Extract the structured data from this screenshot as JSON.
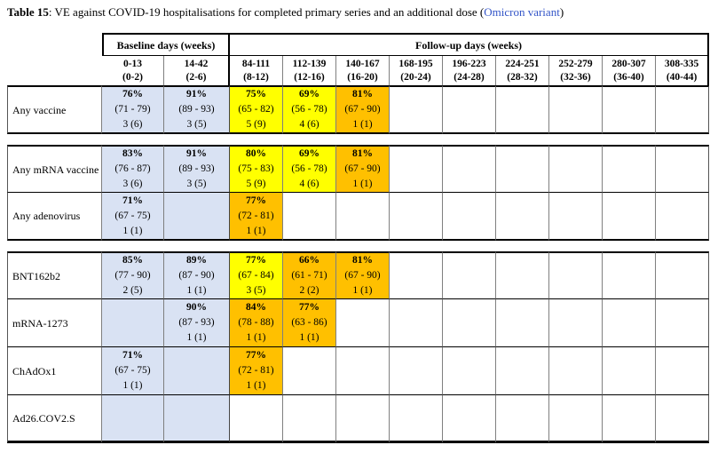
{
  "title": {
    "label": "Table 15",
    "rest": ": VE against COVID-19 hospitalisations for completed primary series and an additional dose (",
    "variant": "Omicron variant",
    "close": ")"
  },
  "colors": {
    "baseline_bg": "#D9E2F3",
    "high_ve_bg": "#FFFF00",
    "mid_ve_bg": "#FFC000",
    "variant_text": "#3355C8"
  },
  "header": {
    "baseline": "Baseline days (weeks)",
    "followup": "Follow-up days (weeks)",
    "columns": [
      {
        "days": "0-13",
        "weeks": "(0-2)"
      },
      {
        "days": "14-42",
        "weeks": "(2-6)"
      },
      {
        "days": "84-111",
        "weeks": "(8-12)"
      },
      {
        "days": "112-139",
        "weeks": "(12-16)"
      },
      {
        "days": "140-167",
        "weeks": "(16-20)"
      },
      {
        "days": "168-195",
        "weeks": "(20-24)"
      },
      {
        "days": "196-223",
        "weeks": "(24-28)"
      },
      {
        "days": "224-251",
        "weeks": "(28-32)"
      },
      {
        "days": "252-279",
        "weeks": "(32-36)"
      },
      {
        "days": "280-307",
        "weeks": "(36-40)"
      },
      {
        "days": "308-335",
        "weeks": "(40-44)"
      }
    ]
  },
  "groups": [
    {
      "rows": [
        {
          "label": "Any vaccine",
          "cells": [
            {
              "bg": "blue",
              "ve": "76%",
              "ci": "(71 - 79)",
              "n": "3 (6)"
            },
            {
              "bg": "blue",
              "ve": "91%",
              "ci": "(89 - 93)",
              "n": "3 (5)"
            },
            {
              "bg": "yellow",
              "ve": "75%",
              "ci": "(65 - 82)",
              "n": "5 (9)"
            },
            {
              "bg": "yellow",
              "ve": "69%",
              "ci": "(56 - 78)",
              "n": "4 (6)"
            },
            {
              "bg": "orange",
              "ve": "81%",
              "ci": "(67 - 90)",
              "n": "1 (1)"
            },
            {
              "bg": "white"
            },
            {
              "bg": "white"
            },
            {
              "bg": "white"
            },
            {
              "bg": "white"
            },
            {
              "bg": "white"
            },
            {
              "bg": "white"
            }
          ]
        }
      ]
    },
    {
      "rows": [
        {
          "label": "Any mRNA vaccine",
          "cells": [
            {
              "bg": "blue",
              "ve": "83%",
              "ci": "(76 - 87)",
              "n": "3 (6)"
            },
            {
              "bg": "blue",
              "ve": "91%",
              "ci": "(89 - 93)",
              "n": "3 (5)"
            },
            {
              "bg": "yellow",
              "ve": "80%",
              "ci": "(75 - 83)",
              "n": "5 (9)"
            },
            {
              "bg": "yellow",
              "ve": "69%",
              "ci": "(56 - 78)",
              "n": "4 (6)"
            },
            {
              "bg": "orange",
              "ve": "81%",
              "ci": "(67 - 90)",
              "n": "1 (1)"
            },
            {
              "bg": "white"
            },
            {
              "bg": "white"
            },
            {
              "bg": "white"
            },
            {
              "bg": "white"
            },
            {
              "bg": "white"
            },
            {
              "bg": "white"
            }
          ]
        },
        {
          "label": "Any adenovirus",
          "cells": [
            {
              "bg": "blue",
              "ve": "71%",
              "ci": "(67 - 75)",
              "n": "1 (1)"
            },
            {
              "bg": "blue"
            },
            {
              "bg": "orange",
              "ve": "77%",
              "ci": "(72 - 81)",
              "n": "1 (1)"
            },
            {
              "bg": "white"
            },
            {
              "bg": "white"
            },
            {
              "bg": "white"
            },
            {
              "bg": "white"
            },
            {
              "bg": "white"
            },
            {
              "bg": "white"
            },
            {
              "bg": "white"
            },
            {
              "bg": "white"
            }
          ]
        }
      ]
    },
    {
      "rows": [
        {
          "label": "BNT162b2",
          "cells": [
            {
              "bg": "blue",
              "ve": "85%",
              "ci": "(77 - 90)",
              "n": "2 (5)"
            },
            {
              "bg": "blue",
              "ve": "89%",
              "ci": "(87 - 90)",
              "n": "1 (1)"
            },
            {
              "bg": "yellow",
              "ve": "77%",
              "ci": "(67 - 84)",
              "n": "3 (5)"
            },
            {
              "bg": "orange",
              "ve": "66%",
              "ci": "(61 - 71)",
              "n": "2 (2)"
            },
            {
              "bg": "orange",
              "ve": "81%",
              "ci": "(67 - 90)",
              "n": "1 (1)"
            },
            {
              "bg": "white"
            },
            {
              "bg": "white"
            },
            {
              "bg": "white"
            },
            {
              "bg": "white"
            },
            {
              "bg": "white"
            },
            {
              "bg": "white"
            }
          ]
        },
        {
          "label": "mRNA-1273",
          "cells": [
            {
              "bg": "blue"
            },
            {
              "bg": "blue",
              "ve": "90%",
              "ci": "(87 - 93)",
              "n": "1 (1)"
            },
            {
              "bg": "orange",
              "ve": "84%",
              "ci": "(78 - 88)",
              "n": "1 (1)"
            },
            {
              "bg": "orange",
              "ve": "77%",
              "ci": "(63 - 86)",
              "n": "1 (1)"
            },
            {
              "bg": "white"
            },
            {
              "bg": "white"
            },
            {
              "bg": "white"
            },
            {
              "bg": "white"
            },
            {
              "bg": "white"
            },
            {
              "bg": "white"
            },
            {
              "bg": "white"
            }
          ]
        },
        {
          "label": "ChAdOx1",
          "cells": [
            {
              "bg": "blue",
              "ve": "71%",
              "ci": "(67 - 75)",
              "n": "1 (1)"
            },
            {
              "bg": "blue"
            },
            {
              "bg": "orange",
              "ve": "77%",
              "ci": "(72 - 81)",
              "n": "1 (1)"
            },
            {
              "bg": "white"
            },
            {
              "bg": "white"
            },
            {
              "bg": "white"
            },
            {
              "bg": "white"
            },
            {
              "bg": "white"
            },
            {
              "bg": "white"
            },
            {
              "bg": "white"
            },
            {
              "bg": "white"
            }
          ]
        },
        {
          "label": "Ad26.COV2.S",
          "cells": [
            {
              "bg": "blue"
            },
            {
              "bg": "blue"
            },
            {
              "bg": "white"
            },
            {
              "bg": "white"
            },
            {
              "bg": "white"
            },
            {
              "bg": "white"
            },
            {
              "bg": "white"
            },
            {
              "bg": "white"
            },
            {
              "bg": "white"
            },
            {
              "bg": "white"
            },
            {
              "bg": "white"
            }
          ]
        }
      ]
    }
  ]
}
